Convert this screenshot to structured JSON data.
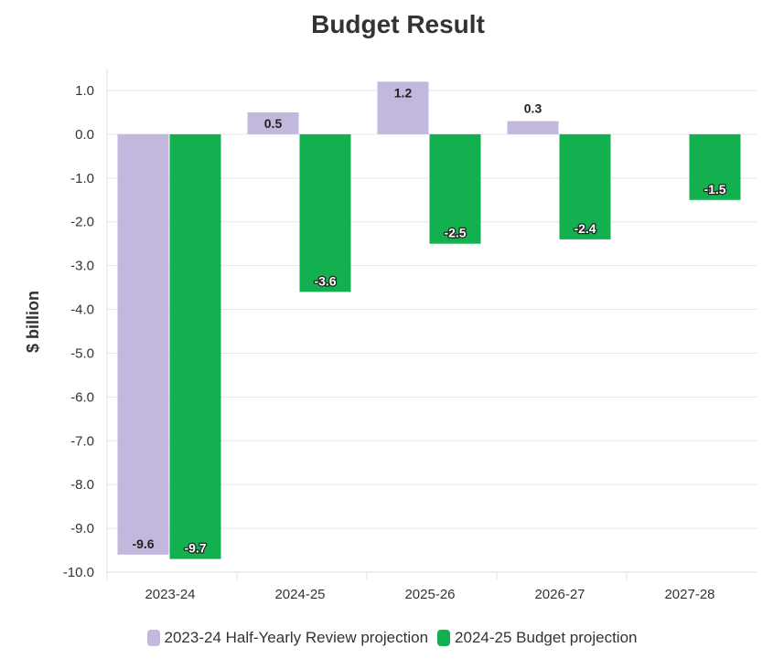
{
  "chart_data": {
    "type": "bar",
    "title": "Budget Result",
    "xlabel": "",
    "ylabel": "$ billion",
    "ylim": [
      -10.0,
      1.0
    ],
    "y_ticks": [
      "1.0",
      "0.0",
      "-1.0",
      "-2.0",
      "-3.0",
      "-4.0",
      "-5.0",
      "-6.0",
      "-7.0",
      "-8.0",
      "-9.0",
      "-10.0"
    ],
    "categories": [
      "2023-24",
      "2024-25",
      "2025-26",
      "2026-27",
      "2027-28"
    ],
    "grid": true,
    "legend_position": "bottom-center",
    "series": [
      {
        "name": "2023-24 Half-Yearly Review projection",
        "color": "#c2b7dc",
        "values": [
          -9.6,
          0.5,
          1.2,
          0.3,
          null
        ],
        "labels": [
          "-9.6",
          "0.5",
          "1.2",
          "0.3",
          ""
        ]
      },
      {
        "name": "2024-25 Budget projection",
        "color": "#13b04f",
        "values": [
          -9.7,
          -3.6,
          -2.5,
          -2.4,
          -1.5
        ],
        "labels": [
          "-9.7",
          "-3.6",
          "-2.5",
          "-2.4",
          "-1.5"
        ]
      }
    ]
  }
}
